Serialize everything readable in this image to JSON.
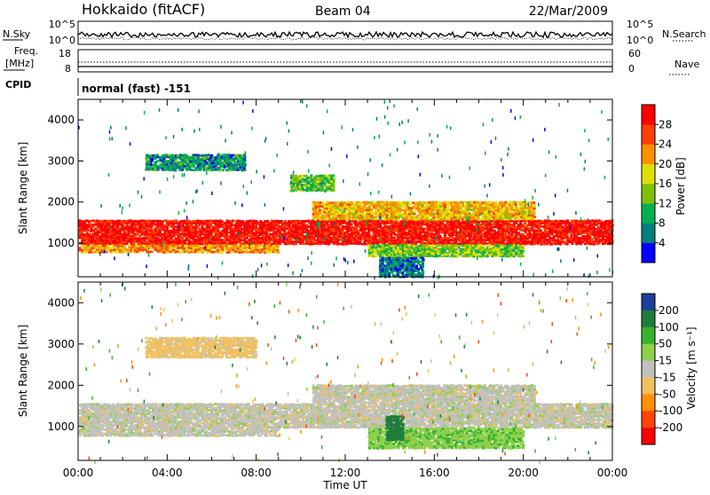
{
  "header": {
    "station": "Hokkaido (fitACF)",
    "beam": "Beam 04",
    "date": "22/Mar/2009"
  },
  "top_panel": {
    "left_label": "N.Sky",
    "right_label": "N.Search",
    "left_ticks": [
      "10^5",
      "10^0"
    ],
    "right_ticks": [
      "10^5",
      "10^0"
    ]
  },
  "freq_panel": {
    "left_label_1": "Freq.",
    "left_label_2": "[MHz]",
    "left_ticks": [
      "18",
      "8"
    ],
    "right_label": "Nave",
    "right_ticks": [
      "60",
      "0"
    ]
  },
  "cpid": {
    "label": "CPID",
    "mode": "normal (fast) -151"
  },
  "chart_data": [
    {
      "type": "heatmap",
      "name": "power",
      "ylabel": "Slant Range [km]",
      "xlabel": "Time UT",
      "x_ticks": [
        "00:00",
        "04:00",
        "08:00",
        "12:00",
        "16:00",
        "20:00",
        "00:00"
      ],
      "xlim_hours": [
        0,
        24
      ],
      "y_ticks": [
        "1000",
        "2000",
        "3000",
        "4000"
      ],
      "ylim_km": [
        180,
        4500
      ],
      "colorbar": {
        "label": "Power [dB]",
        "ticks": [
          "4",
          "8",
          "12",
          "16",
          "20",
          "24",
          "28"
        ],
        "range": [
          0,
          32
        ]
      },
      "regions": [
        {
          "t0": 0,
          "t1": 24,
          "r0": 1000,
          "r1": 1600,
          "value": 30
        },
        {
          "t0": 0,
          "t1": 9,
          "r0": 800,
          "r1": 1000,
          "value": 22
        },
        {
          "t0": 10.5,
          "t1": 20.5,
          "r0": 1600,
          "r1": 2050,
          "value": 20
        },
        {
          "t0": 9.5,
          "t1": 11.5,
          "r0": 2300,
          "r1": 2700,
          "value": 12
        },
        {
          "t0": 3,
          "t1": 7.5,
          "r0": 2800,
          "r1": 3200,
          "value": 8
        },
        {
          "t0": 13,
          "t1": 20,
          "r0": 700,
          "r1": 1000,
          "value": 14
        },
        {
          "t0": 13.5,
          "t1": 15.5,
          "r0": 200,
          "r1": 700,
          "value": 6
        }
      ]
    },
    {
      "type": "heatmap",
      "name": "velocity",
      "ylabel": "Slant Range [km]",
      "xlabel": "Time UT",
      "x_ticks": [
        "00:00",
        "04:00",
        "08:00",
        "12:00",
        "16:00",
        "20:00",
        "00:00"
      ],
      "xlim_hours": [
        0,
        24
      ],
      "y_ticks": [
        "1000",
        "2000",
        "3000",
        "4000"
      ],
      "ylim_km": [
        180,
        4500
      ],
      "colorbar": {
        "label": "Velocity [m s⁻¹]",
        "ticks": [
          "200",
          "100",
          "50",
          "15",
          "-15",
          "-50",
          "-100",
          "-200"
        ],
        "range": [
          -250,
          250
        ]
      },
      "regions": [
        {
          "t0": 0,
          "t1": 24,
          "r0": 1000,
          "r1": 1600,
          "value": 0
        },
        {
          "t0": 0,
          "t1": 9,
          "r0": 800,
          "r1": 1000,
          "value": 0
        },
        {
          "t0": 10.5,
          "t1": 20.5,
          "r0": 1600,
          "r1": 2050,
          "value": 0
        },
        {
          "t0": 13,
          "t1": 20,
          "r0": 500,
          "r1": 1000,
          "value": 40
        },
        {
          "t0": 13.8,
          "t1": 14.6,
          "r0": 700,
          "r1": 1300,
          "value": 120
        },
        {
          "t0": 3,
          "t1": 8,
          "r0": 2700,
          "r1": 3200,
          "value": -30
        }
      ]
    }
  ],
  "colors": {
    "power_scale": [
      "#0000ff",
      "#007f7f",
      "#00b050",
      "#80c000",
      "#e0e000",
      "#ff9000",
      "#ff4000",
      "#ff0000"
    ],
    "velocity_scale": [
      "#1e3f9e",
      "#1f7d3c",
      "#38b230",
      "#8ed04a",
      "#c0c0bc",
      "#f0c060",
      "#ff9000",
      "#ff4500",
      "#ff0000"
    ]
  }
}
